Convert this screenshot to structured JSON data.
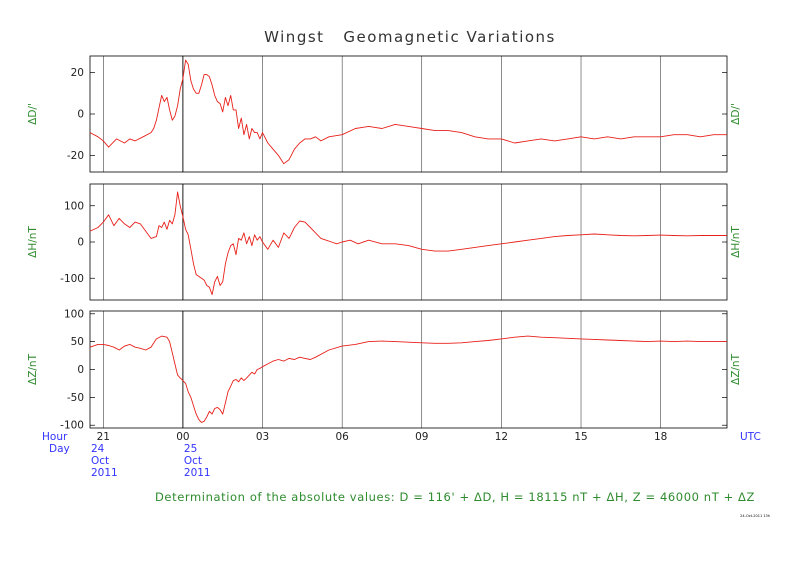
{
  "title": "Wingst   Geomagnetic Variations",
  "footer_note": "Determination of the absolute values: D = 116' + ΔD, H = 18115 nT + ΔH, Z = 46000 nT + ΔZ",
  "tiny_stamp": "24-Oct-2011 13h",
  "colors": {
    "trace": "#e8201a",
    "axis_label": "#2e8b2e",
    "time_label": "#3333ff",
    "frame": "#000000",
    "grid": "#000000"
  },
  "time_axis": {
    "hour_label": "Hour",
    "day_label": "Day",
    "utc_label": "UTC",
    "ticks": [
      "21",
      "00",
      "03",
      "06",
      "09",
      "12",
      "15",
      "18"
    ],
    "tick_hours": [
      21,
      24,
      27,
      30,
      33,
      36,
      39,
      42
    ],
    "range_hours": [
      20.5,
      44.5
    ],
    "day_marks": [
      {
        "hour": 20.5,
        "day": "24",
        "month": "Oct",
        "year": "2011"
      },
      {
        "hour": 24,
        "day": "25",
        "month": "Oct",
        "year": "2011"
      }
    ]
  },
  "chart_data": [
    {
      "type": "line",
      "name": "D",
      "ylabel": "ΔD/'",
      "ylim": [
        -28,
        28
      ],
      "yticks": [
        20,
        0,
        -20
      ],
      "grid": true,
      "x": [
        20.5,
        20.8,
        21.0,
        21.2,
        21.5,
        21.8,
        22.0,
        22.2,
        22.5,
        22.8,
        22.9,
        23.0,
        23.1,
        23.2,
        23.3,
        23.4,
        23.5,
        23.6,
        23.7,
        23.8,
        23.9,
        24.0,
        24.1,
        24.2,
        24.3,
        24.4,
        24.5,
        24.6,
        24.7,
        24.8,
        24.9,
        25.0,
        25.1,
        25.2,
        25.3,
        25.4,
        25.5,
        25.6,
        25.7,
        25.8,
        25.9,
        26.0,
        26.1,
        26.2,
        26.3,
        26.4,
        26.5,
        26.6,
        26.7,
        26.8,
        26.9,
        27.0,
        27.2,
        27.4,
        27.6,
        27.8,
        28.0,
        28.2,
        28.4,
        28.6,
        28.8,
        29.0,
        29.2,
        29.5,
        30.0,
        30.5,
        31.0,
        31.5,
        32.0,
        32.5,
        33.0,
        33.5,
        34.0,
        34.5,
        35.0,
        35.5,
        36.0,
        36.5,
        37.0,
        37.5,
        38.0,
        38.5,
        39.0,
        39.5,
        40.0,
        40.5,
        41.0,
        41.5,
        42.0,
        42.5,
        43.0,
        43.5,
        44.0,
        44.5
      ],
      "values": [
        -9,
        -11,
        -13,
        -16,
        -12,
        -14,
        -12,
        -13,
        -11,
        -9,
        -7,
        -3,
        3,
        9,
        6,
        8,
        2,
        -3,
        -1,
        4,
        12,
        17,
        26,
        24,
        16,
        12,
        10,
        10,
        14,
        19,
        19,
        18,
        14,
        9,
        6,
        5,
        1,
        8,
        4,
        9,
        2,
        2,
        -7,
        -2,
        -10,
        -5,
        -12,
        -7,
        -9,
        -9,
        -12,
        -9,
        -14,
        -17,
        -20,
        -24,
        -22,
        -17,
        -14,
        -12,
        -12,
        -11,
        -13,
        -11,
        -10,
        -7,
        -6,
        -7,
        -5,
        -6,
        -7,
        -8,
        -8,
        -9,
        -11,
        -12,
        -12,
        -14,
        -13,
        -12,
        -13,
        -12,
        -11,
        -12,
        -11,
        -12,
        -11,
        -11,
        -11,
        -10,
        -10,
        -11,
        -10,
        -10
      ]
    },
    {
      "type": "line",
      "name": "H",
      "ylabel": "ΔH/nT",
      "ylim": [
        -160,
        160
      ],
      "yticks": [
        100,
        0,
        -100
      ],
      "grid": true,
      "x": [
        20.5,
        20.8,
        21.0,
        21.2,
        21.4,
        21.6,
        21.8,
        22.0,
        22.2,
        22.4,
        22.6,
        22.8,
        23.0,
        23.1,
        23.2,
        23.3,
        23.4,
        23.5,
        23.6,
        23.7,
        23.8,
        23.9,
        24.0,
        24.1,
        24.2,
        24.3,
        24.4,
        24.5,
        24.6,
        24.7,
        24.8,
        24.9,
        25.0,
        25.1,
        25.2,
        25.3,
        25.4,
        25.5,
        25.6,
        25.7,
        25.8,
        25.9,
        26.0,
        26.1,
        26.2,
        26.3,
        26.4,
        26.5,
        26.6,
        26.7,
        26.8,
        26.9,
        27.0,
        27.2,
        27.4,
        27.6,
        27.8,
        28.0,
        28.2,
        28.4,
        28.6,
        28.8,
        29.0,
        29.2,
        29.4,
        29.6,
        29.8,
        30.0,
        30.3,
        30.6,
        31.0,
        31.5,
        32.0,
        32.5,
        33.0,
        33.5,
        34.0,
        34.5,
        35.0,
        35.5,
        36.0,
        36.5,
        37.0,
        37.5,
        38.0,
        38.5,
        39.0,
        39.5,
        40.0,
        40.5,
        41.0,
        41.5,
        42.0,
        42.5,
        43.0,
        43.5,
        44.0,
        44.5
      ],
      "values": [
        30,
        40,
        55,
        75,
        45,
        65,
        50,
        40,
        55,
        50,
        30,
        10,
        15,
        45,
        40,
        55,
        35,
        60,
        50,
        75,
        138,
        100,
        70,
        35,
        20,
        -20,
        -60,
        -90,
        -95,
        -100,
        -105,
        -120,
        -125,
        -145,
        -110,
        -95,
        -120,
        -110,
        -60,
        -30,
        -10,
        -5,
        -35,
        10,
        5,
        25,
        -5,
        15,
        -10,
        20,
        5,
        15,
        0,
        -20,
        5,
        -15,
        25,
        10,
        40,
        58,
        55,
        40,
        25,
        10,
        5,
        0,
        -5,
        0,
        5,
        -5,
        5,
        -5,
        -5,
        -10,
        -20,
        -25,
        -25,
        -20,
        -15,
        -10,
        -5,
        0,
        5,
        10,
        15,
        18,
        20,
        22,
        20,
        18,
        17,
        18,
        19,
        18,
        17,
        18,
        18,
        18
      ]
    },
    {
      "type": "line",
      "name": "Z",
      "ylabel": "ΔZ/nT",
      "ylim": [
        -105,
        105
      ],
      "yticks": [
        100,
        50,
        0,
        -50,
        -100
      ],
      "grid": true,
      "x": [
        20.5,
        20.8,
        21.0,
        21.2,
        21.4,
        21.6,
        21.8,
        22.0,
        22.2,
        22.4,
        22.6,
        22.8,
        23.0,
        23.2,
        23.4,
        23.5,
        23.6,
        23.7,
        23.8,
        23.9,
        24.0,
        24.1,
        24.2,
        24.3,
        24.4,
        24.5,
        24.6,
        24.7,
        24.8,
        24.9,
        25.0,
        25.1,
        25.2,
        25.3,
        25.4,
        25.5,
        25.6,
        25.7,
        25.8,
        25.9,
        26.0,
        26.1,
        26.2,
        26.3,
        26.4,
        26.5,
        26.6,
        26.7,
        26.8,
        26.9,
        27.0,
        27.2,
        27.4,
        27.6,
        27.8,
        28.0,
        28.2,
        28.4,
        28.6,
        28.8,
        29.0,
        29.5,
        30.0,
        30.5,
        31.0,
        31.5,
        32.0,
        32.5,
        33.0,
        33.5,
        34.0,
        34.5,
        35.0,
        35.5,
        36.0,
        36.5,
        37.0,
        37.5,
        38.0,
        38.5,
        39.0,
        39.5,
        40.0,
        40.5,
        41.0,
        41.5,
        42.0,
        42.5,
        43.0,
        43.5,
        44.0,
        44.5
      ],
      "values": [
        40,
        45,
        45,
        43,
        40,
        35,
        42,
        45,
        40,
        38,
        35,
        40,
        55,
        60,
        58,
        50,
        30,
        10,
        -10,
        -15,
        -20,
        -25,
        -40,
        -50,
        -65,
        -80,
        -90,
        -95,
        -93,
        -85,
        -75,
        -80,
        -70,
        -68,
        -72,
        -80,
        -60,
        -40,
        -30,
        -20,
        -18,
        -22,
        -15,
        -20,
        -15,
        -10,
        -5,
        -8,
        0,
        2,
        5,
        10,
        15,
        18,
        15,
        20,
        18,
        22,
        20,
        18,
        22,
        35,
        42,
        45,
        50,
        51,
        50,
        49,
        48,
        47,
        47,
        48,
        50,
        52,
        55,
        58,
        60,
        58,
        57,
        56,
        55,
        54,
        53,
        52,
        51,
        50,
        51,
        50,
        51,
        50,
        50,
        50
      ]
    }
  ]
}
